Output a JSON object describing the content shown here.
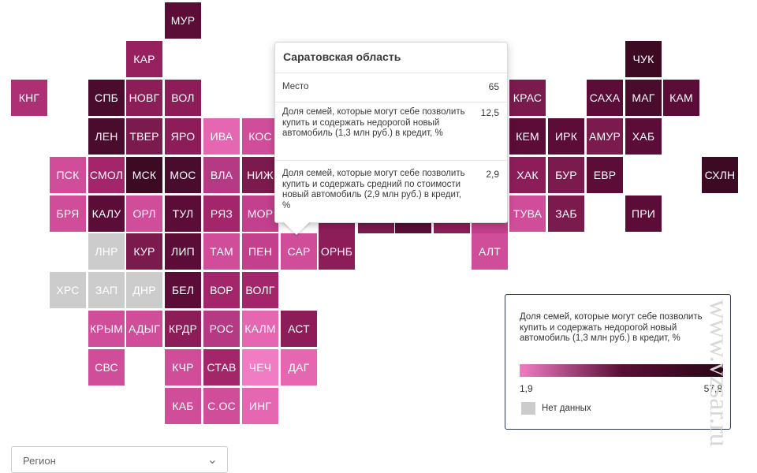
{
  "map": {
    "tiles": [
      {
        "label": "МУР",
        "color": "#5b0d37"
      },
      {
        "label": "КАР",
        "color": "#97215f"
      },
      {
        "label": "ЧУК",
        "color": "#3d0a24"
      },
      {
        "label": "КНГ",
        "color": "#ad2f74"
      },
      {
        "label": "СПБ",
        "color": "#4a0c2c"
      },
      {
        "label": "НОВГ",
        "color": "#8b1e57"
      },
      {
        "label": "ВОЛ",
        "color": "#8c1d58"
      },
      {
        "label": "КРАС",
        "color": "#7b1a4d"
      },
      {
        "label": "САХА",
        "color": "#5b0d37"
      },
      {
        "label": "МАГ",
        "color": "#4a0c2c"
      },
      {
        "label": "КАМ",
        "color": "#5b0d37"
      },
      {
        "label": "ЛЕН",
        "color": "#4a0c2c"
      },
      {
        "label": "ТВЕР",
        "color": "#7b1a4d"
      },
      {
        "label": "ЯРО",
        "color": "#8c1d58"
      },
      {
        "label": "ИВА",
        "color": "#e566b1"
      },
      {
        "label": "КОС",
        "color": "#d04d99"
      },
      {
        "label": "КЕМ",
        "color": "#5b0d37"
      },
      {
        "label": "ИРК",
        "color": "#5b0d37"
      },
      {
        "label": "АМУР",
        "color": "#7b1a4d"
      },
      {
        "label": "ХАБ",
        "color": "#5b0d37"
      },
      {
        "label": "ПСК",
        "color": "#d04d99"
      },
      {
        "label": "СМОЛ",
        "color": "#a22669"
      },
      {
        "label": "МСК",
        "color": "#3d0a24"
      },
      {
        "label": "МОС",
        "color": "#4a0c2c"
      },
      {
        "label": "ВЛА",
        "color": "#b33a83"
      },
      {
        "label": "НИЖ",
        "color": "#7b1a4d"
      },
      {
        "label": "ХАК",
        "color": "#8c1d58"
      },
      {
        "label": "БУР",
        "color": "#7b1a4d"
      },
      {
        "label": "ЕВР",
        "color": "#5b0d37"
      },
      {
        "label": "СХЛН",
        "color": "#3d0a24"
      },
      {
        "label": "БРЯ",
        "color": "#d04d99"
      },
      {
        "label": "КАЛУ",
        "color": "#5b0d37"
      },
      {
        "label": "ОРЛ",
        "color": "#d04d99"
      },
      {
        "label": "ТУЛ",
        "color": "#5b0d37"
      },
      {
        "label": "РЯЗ",
        "color": "#a22669"
      },
      {
        "label": "МОР",
        "color": "#c2408c"
      },
      {
        "label": "ТУВА",
        "color": "#d04d99"
      },
      {
        "label": "ЗАБ",
        "color": "#7b1a4d"
      },
      {
        "label": "ПРИ",
        "color": "#5b0d37"
      },
      {
        "label": "ЛНР",
        "color": "#cccccc"
      },
      {
        "label": "КУР",
        "color": "#7b1a4d"
      },
      {
        "label": "ЛИП",
        "color": "#5b0d37"
      },
      {
        "label": "ТАМ",
        "color": "#d04d99"
      },
      {
        "label": "ПЕН",
        "color": "#c2408c"
      },
      {
        "label": "САР",
        "color": "#d04d99"
      },
      {
        "label": "ОРНБ",
        "color": "#8c1d58"
      },
      {
        "label": "АЛТ",
        "color": "#d04d99"
      },
      {
        "label": "ХРС",
        "color": "#cccccc"
      },
      {
        "label": "ЗАП",
        "color": "#cccccc"
      },
      {
        "label": "ДНР",
        "color": "#cccccc"
      },
      {
        "label": "БЕЛ",
        "color": "#5b0d37"
      },
      {
        "label": "ВОР",
        "color": "#a22669"
      },
      {
        "label": "ВОЛГ",
        "color": "#a22669"
      },
      {
        "label": "КРЫМ",
        "color": "#d04d99"
      },
      {
        "label": "АДЫГ",
        "color": "#d04d99"
      },
      {
        "label": "КРДР",
        "color": "#8c1d58"
      },
      {
        "label": "РОС",
        "color": "#b33a83"
      },
      {
        "label": "КАЛМ",
        "color": "#e566b1"
      },
      {
        "label": "АСТ",
        "color": "#8c1d58"
      },
      {
        "label": "СВС",
        "color": "#d04d99"
      },
      {
        "label": "КЧР",
        "color": "#d04d99"
      },
      {
        "label": "СТАВ",
        "color": "#a22669"
      },
      {
        "label": "ЧЕЧ",
        "color": "#f07cc4"
      },
      {
        "label": "ДАГ",
        "color": "#e566b1"
      },
      {
        "label": "КАБ",
        "color": "#d04d99"
      },
      {
        "label": "С.ОС",
        "color": "#d04d99"
      },
      {
        "label": "ИНГ",
        "color": "#e566b1"
      }
    ]
  },
  "tooltip": {
    "title": "Саратовская область",
    "rows": [
      {
        "label": "Место",
        "value": "65"
      },
      {
        "label": "Доля семей, которые могут себе позволить купить и содержать недорогой новый автомобиль (1,3 млн руб.) в кредит, %",
        "value": "12,5"
      },
      {
        "label": "Доля семей, которые могут себе позволить купить и содержать средний по стоимости новый автомобиль (2,9 млн руб.) в кредит, %",
        "value": "2,9"
      }
    ]
  },
  "legend": {
    "title": "Доля семей, которые могут себе позволить купить и содержать недорогой новый автомобиль (1,3 млн руб.) в кредит, %",
    "min": "1,9",
    "max": "57,8",
    "no_data": "Нет данных"
  },
  "region_select": {
    "placeholder": "Регион"
  },
  "watermark": "www.vzsar.ru"
}
